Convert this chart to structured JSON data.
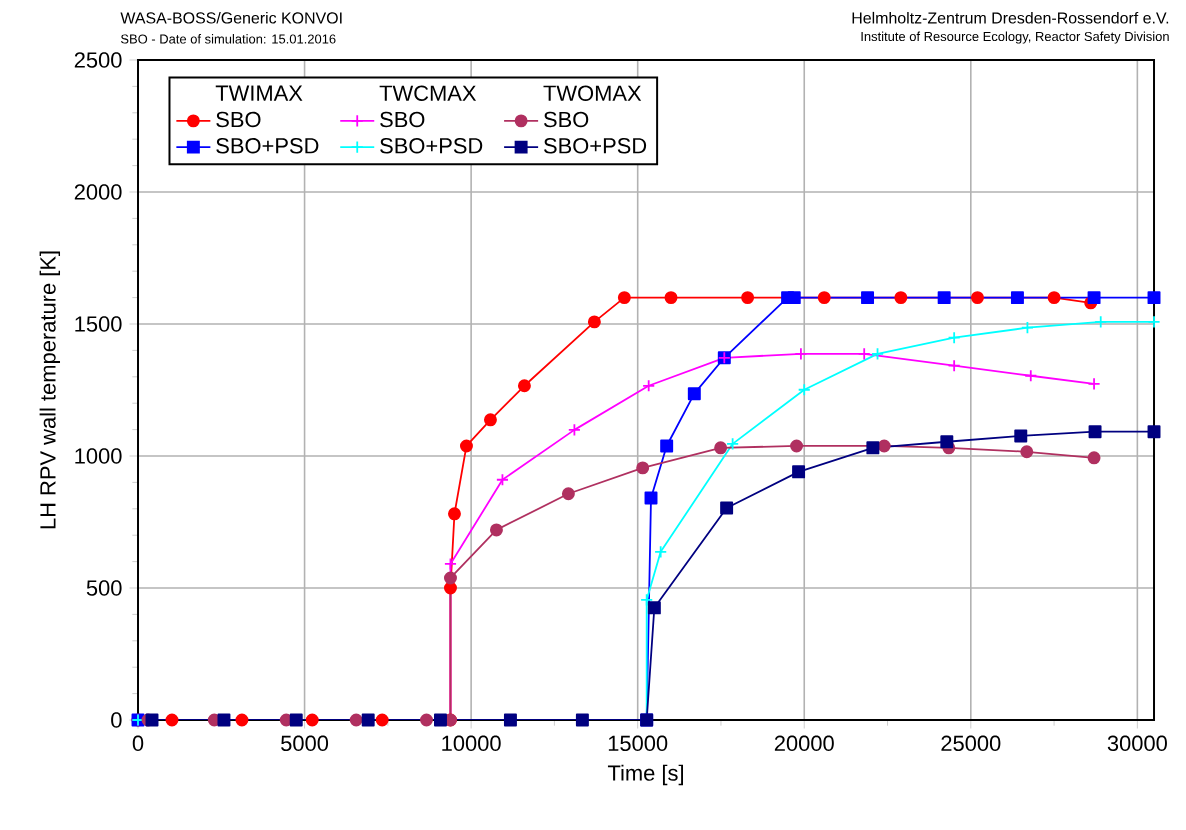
{
  "chart_data": {
    "type": "line",
    "title": "WASA-BOSS/Generic KONVOI",
    "subtitle": "SBO - Date of simulation: 15.01.2016",
    "annotations": [
      "Helmholtz-Zentrum Dresden-Rossendorf e.V.",
      "Institute of Resource Ecology, Reactor Safety Division",
      "TWIMAX",
      "TWCMAX",
      "TWOMAX"
    ],
    "xlabel": "Time [s]",
    "ylabel": "LH RPV wall temperature [K]",
    "xlim": [
      0,
      30500
    ],
    "ylim": [
      0,
      2500
    ],
    "xticks": [
      0,
      5000,
      10000,
      15000,
      20000,
      25000,
      30000
    ],
    "yticks": [
      0,
      500,
      1000,
      1500,
      2000,
      2500
    ],
    "grid": true,
    "legend": "top left",
    "series": [
      {
        "name": "SBO",
        "color": "#ff0000",
        "marker": "circle",
        "x": [
          0,
          1020,
          3120,
          5230,
          7330,
          9380,
          9380,
          9500,
          9860,
          10580,
          11600,
          13700,
          14600,
          16000,
          18300,
          20600,
          22900,
          25200,
          27500,
          28600
        ],
        "values": [
          0,
          0,
          0,
          0,
          0,
          0,
          500,
          781,
          1038,
          1137,
          1266,
          1508,
          1600,
          1600,
          1600,
          1600,
          1600,
          1600,
          1600,
          1580
        ]
      },
      {
        "name": "SBO+PSD",
        "color": "#0000ff",
        "marker": "square",
        "x": [
          0,
          15270,
          15400,
          15870,
          16700,
          17600,
          19500,
          19700,
          21900,
          24200,
          26400,
          28700,
          30500
        ],
        "values": [
          0,
          0,
          841,
          1038,
          1236,
          1372,
          1600,
          1600,
          1600,
          1600,
          1600,
          1600,
          1600
        ]
      },
      {
        "name": "SBO",
        "color": "#ff00ff",
        "marker": "cross",
        "x": [
          0,
          9380,
          9380,
          10940,
          13100,
          15330,
          17600,
          19900,
          21800,
          24500,
          26800,
          28700
        ],
        "values": [
          0,
          0,
          591,
          910,
          1099,
          1266,
          1372,
          1387,
          1387,
          1342,
          1304,
          1273
        ]
      },
      {
        "name": "SBO+PSD",
        "color": "#00ffff",
        "marker": "cross",
        "x": [
          0,
          15270,
          15270,
          15690,
          17850,
          20000,
          22200,
          24500,
          26700,
          28900,
          30500
        ],
        "values": [
          0,
          0,
          455,
          637,
          1046,
          1251,
          1387,
          1448,
          1486,
          1508,
          1508
        ]
      },
      {
        "name": "SBO",
        "color": "#b03060",
        "marker": "circle",
        "x": [
          300,
          2290,
          4450,
          6550,
          8660,
          9380,
          9380,
          10760,
          12920,
          15150,
          17490,
          19770,
          22400,
          24340,
          26680,
          28700
        ],
        "values": [
          0,
          0,
          0,
          0,
          0,
          0,
          538,
          720,
          857,
          955,
          1031,
          1038,
          1038,
          1031,
          1016,
          993
        ]
      },
      {
        "name": "SBO+PSD",
        "color": "#000080",
        "marker": "square",
        "x": [
          420,
          2580,
          4750,
          6910,
          9080,
          11180,
          13340,
          15270,
          15500,
          17670,
          19830,
          22060,
          24280,
          26500,
          28730,
          30500
        ],
        "values": [
          0,
          0,
          0,
          0,
          0,
          0,
          0,
          0,
          425,
          803,
          940,
          1031,
          1054,
          1076,
          1092,
          1092
        ]
      }
    ]
  }
}
